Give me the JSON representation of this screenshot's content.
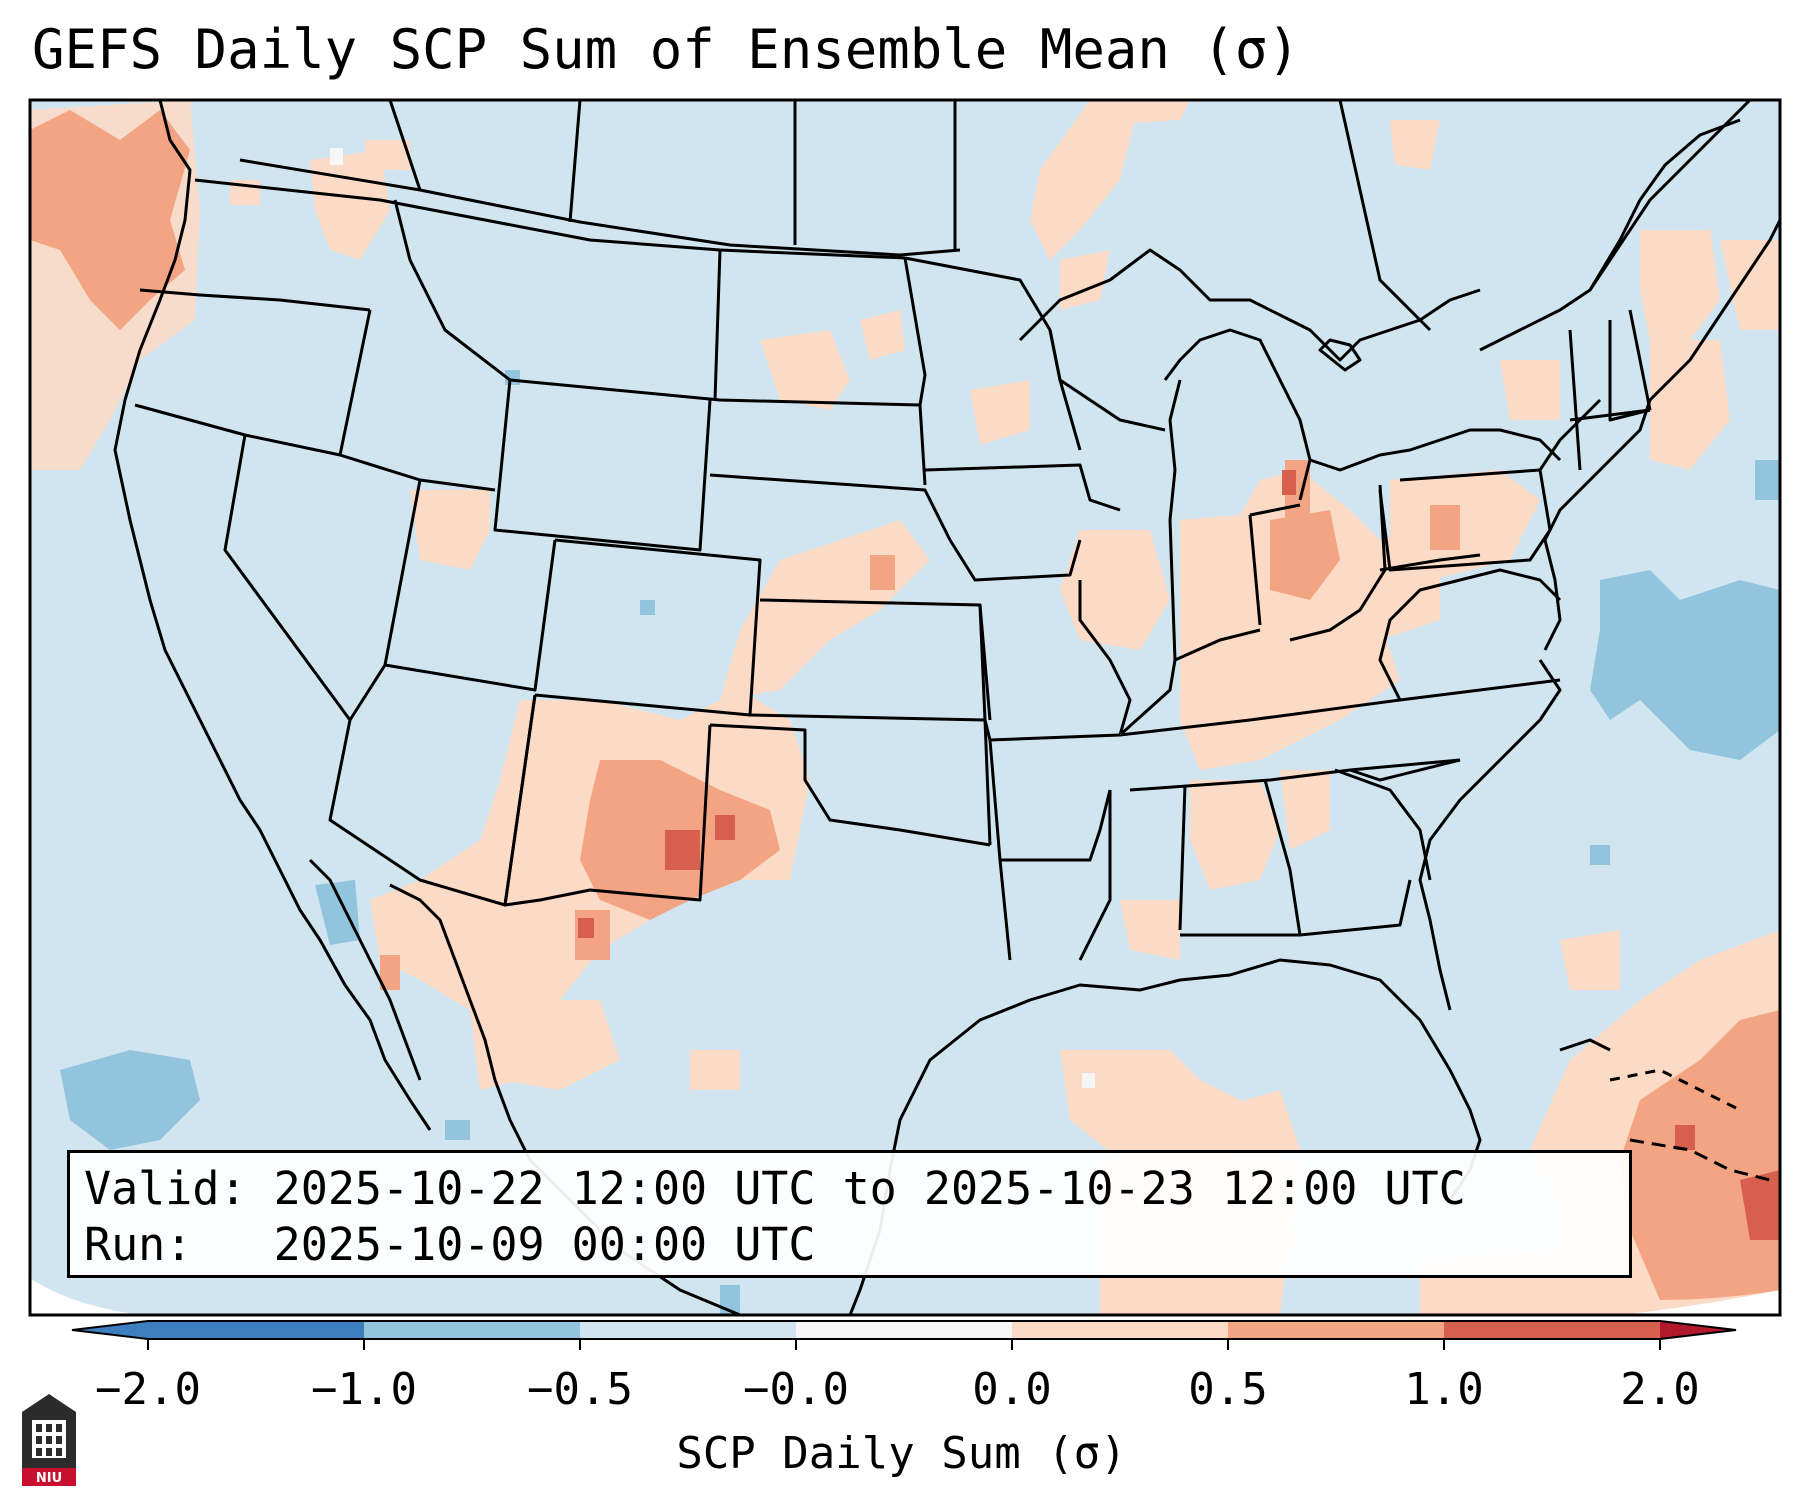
{
  "title": "GEFS Daily SCP Sum of Ensemble Mean (σ)",
  "info": {
    "valid_line": "Valid: 2025-10-22 12:00 UTC to 2025-10-23 12:00 UTC",
    "run_line": "Run:   2025-10-09 00:00 UTC"
  },
  "colorbar": {
    "label": "SCP Daily Sum (σ)",
    "ticks": [
      "−2.0",
      "−1.0",
      "−0.5",
      "−0.0",
      "0.0",
      "0.5",
      "1.0",
      "2.0"
    ],
    "colors": [
      "#3c7ec0",
      "#92c4de",
      "#d1e5f0",
      "#f6f6f6",
      "#fbdac6",
      "#f3a482",
      "#d6604d",
      "#b2182b"
    ]
  },
  "legend_icons": {
    "logo": "niu-logo-icon"
  },
  "logo_text": "NIU"
}
